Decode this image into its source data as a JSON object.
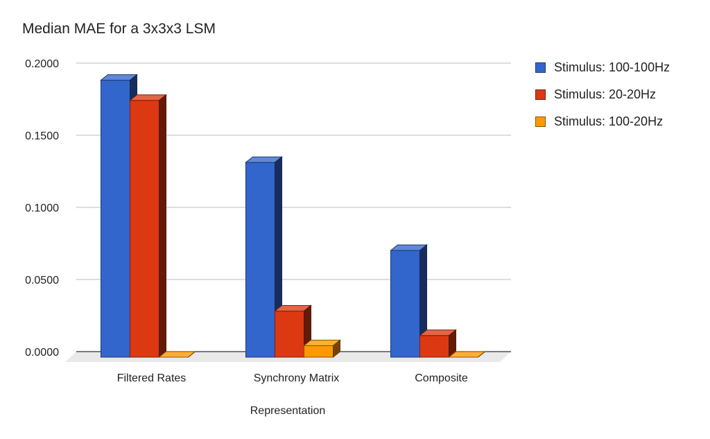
{
  "chart_data": {
    "type": "bar",
    "title": "Median MAE for a 3x3x3 LSM",
    "xlabel": "Representation",
    "ylabel": "",
    "categories": [
      "Filtered Rates",
      "Synchrony Matrix",
      "Composite"
    ],
    "series": [
      {
        "name": "Stimulus: 100-100Hz",
        "color": "#3366cc",
        "values": [
          0.192,
          0.135,
          0.074
        ]
      },
      {
        "name": "Stimulus: 20-20Hz",
        "color": "#dc3912",
        "values": [
          0.178,
          0.032,
          0.015
        ]
      },
      {
        "name": "Stimulus: 100-20Hz",
        "color": "#ff9900",
        "values": [
          0.0,
          0.008,
          0.0
        ]
      }
    ],
    "ylim": [
      0,
      0.2
    ],
    "yticks": [
      "0.0000",
      "0.0500",
      "0.1000",
      "0.1500",
      "0.2000"
    ],
    "ytick_values": [
      0,
      0.05,
      0.1,
      0.15,
      0.2
    ],
    "grid": true,
    "legend_position": "right",
    "style": "3d-bar"
  }
}
